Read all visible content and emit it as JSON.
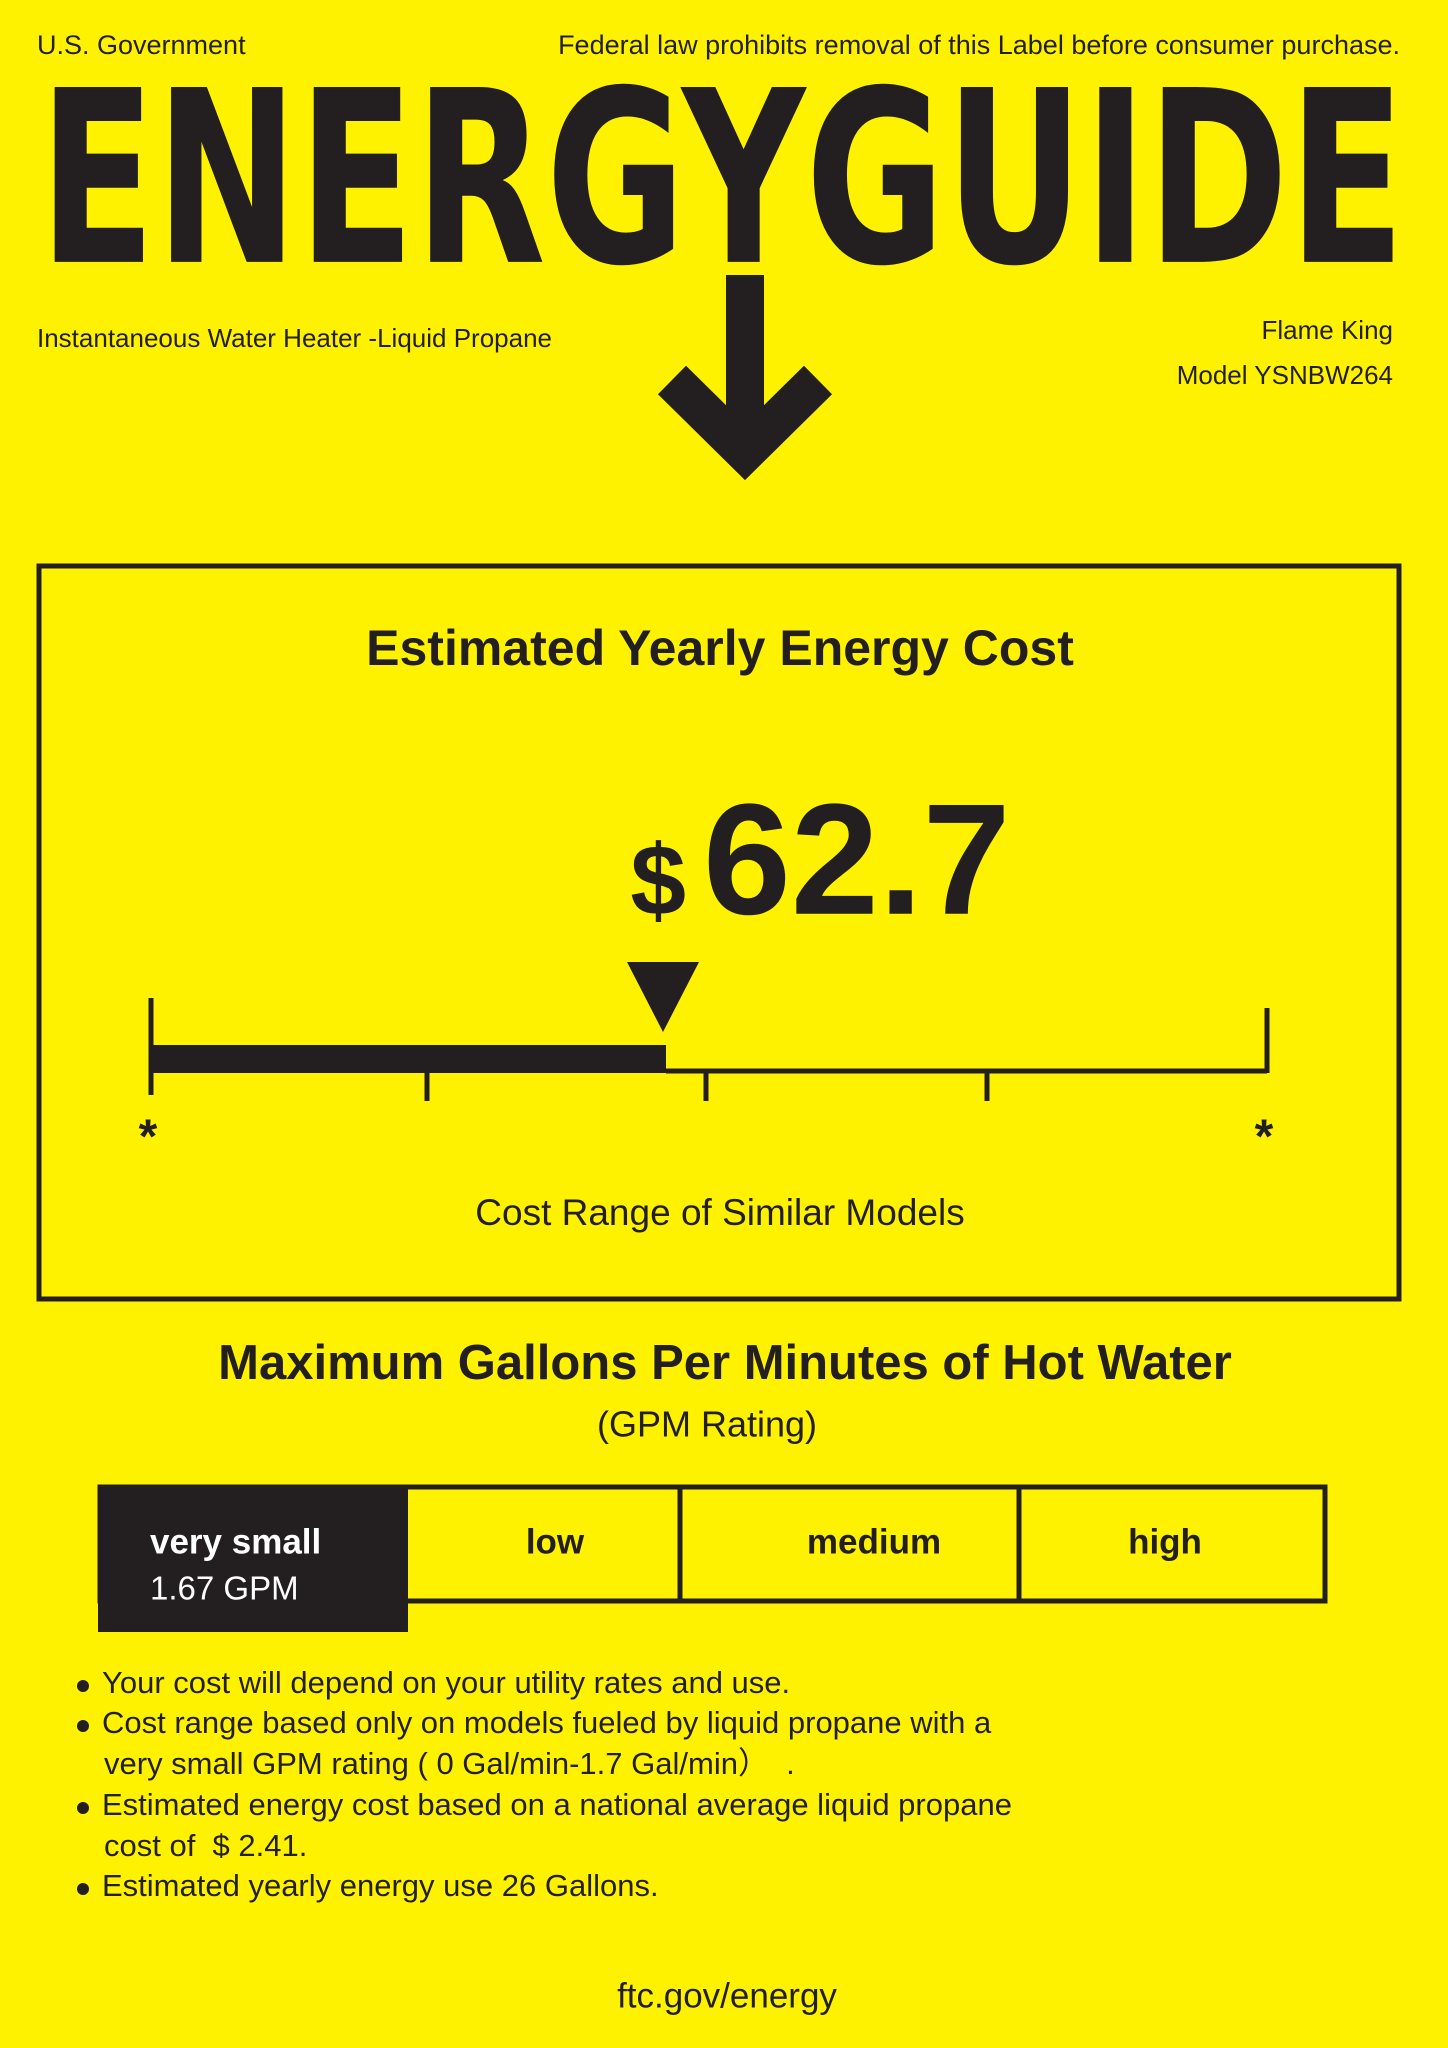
{
  "header": {
    "left": "U.S. Government",
    "right": "Federal law prohibits removal of this Label before consumer purchase.",
    "title": "ENERGYGUIDE"
  },
  "product": {
    "type": "Instantaneous Water Heater -Liquid Propane",
    "brand": "Flame King",
    "model": "Model YSNBW264"
  },
  "cost": {
    "title": "Estimated Yearly Energy Cost",
    "currency": "$",
    "amount": "62.7",
    "range_low": "*",
    "range_high": "*",
    "range_label": "Cost Range of Similar Models"
  },
  "gpm": {
    "title": "Maximum Gallons Per Minutes of Hot Water",
    "subtitle": "(GPM Rating)",
    "categories": [
      "very small",
      "low",
      "medium",
      "high"
    ],
    "rating": "1.67 GPM"
  },
  "notes": [
    [
      "Your cost will depend on your utility rates and use."
    ],
    [
      "Cost range based only on models fueled by liquid propane with a",
      "very small GPM rating ( 0 Gal/min-1.7 Gal/min）  ."
    ],
    [
      "Estimated energy cost based on a national average liquid propane",
      "cost of  $ 2.41."
    ],
    [
      "Estimated yearly energy use 26 Gallons."
    ]
  ],
  "footer": "ftc.gov/energy"
}
